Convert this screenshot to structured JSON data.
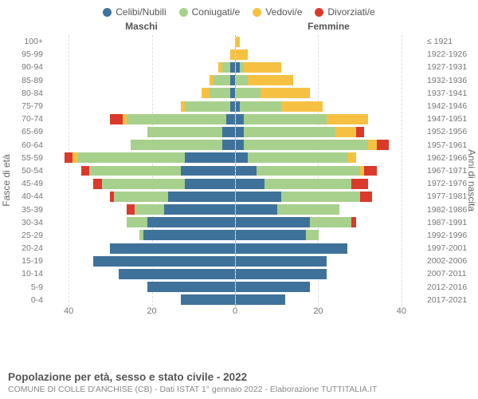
{
  "legend": [
    {
      "label": "Celibi/Nubili",
      "color": "#3f729b"
    },
    {
      "label": "Coniugati/e",
      "color": "#a8d08d"
    },
    {
      "label": "Vedovi/e",
      "color": "#f6c143"
    },
    {
      "label": "Divorziati/e",
      "color": "#d93a2b"
    }
  ],
  "chart": {
    "type": "population-pyramid",
    "male_label": "Maschi",
    "female_label": "Femmine",
    "y_title_left": "Fasce di età",
    "y_title_right": "Anni di nascita",
    "xmax": 45,
    "xticks": [
      40,
      20,
      0,
      20,
      40
    ],
    "background_color": "#ffffff",
    "grid_color": "#dddddd",
    "centerline_color": "#bbbbbb",
    "label_fontsize": 11,
    "axis_fontsize": 12,
    "colors": {
      "single": "#3f729b",
      "married": "#a8d08d",
      "widowed": "#f6c143",
      "divorced": "#d93a2b"
    },
    "rows": [
      {
        "age": "100+",
        "birth": "≤ 1921",
        "m": [
          0,
          0,
          0,
          0
        ],
        "f": [
          0,
          0,
          1,
          0
        ]
      },
      {
        "age": "95-99",
        "birth": "1922-1926",
        "m": [
          0,
          0,
          1,
          0
        ],
        "f": [
          0,
          0,
          3,
          0
        ]
      },
      {
        "age": "90-94",
        "birth": "1927-1931",
        "m": [
          1,
          2,
          1,
          0
        ],
        "f": [
          1,
          1,
          9,
          0
        ]
      },
      {
        "age": "85-89",
        "birth": "1932-1936",
        "m": [
          1,
          4,
          1,
          0
        ],
        "f": [
          0,
          3,
          11,
          0
        ]
      },
      {
        "age": "80-84",
        "birth": "1937-1941",
        "m": [
          1,
          5,
          2,
          0
        ],
        "f": [
          0,
          6,
          12,
          0
        ]
      },
      {
        "age": "75-79",
        "birth": "1942-1946",
        "m": [
          1,
          11,
          1,
          0
        ],
        "f": [
          1,
          10,
          10,
          0
        ]
      },
      {
        "age": "70-74",
        "birth": "1947-1951",
        "m": [
          2,
          24,
          1,
          3
        ],
        "f": [
          2,
          20,
          10,
          0
        ]
      },
      {
        "age": "65-69",
        "birth": "1952-1956",
        "m": [
          3,
          18,
          0,
          0
        ],
        "f": [
          2,
          22,
          5,
          2
        ]
      },
      {
        "age": "60-64",
        "birth": "1957-1961",
        "m": [
          3,
          22,
          0,
          0
        ],
        "f": [
          2,
          30,
          2,
          3
        ]
      },
      {
        "age": "55-59",
        "birth": "1962-1966",
        "m": [
          12,
          26,
          1,
          2
        ],
        "f": [
          3,
          24,
          2,
          0
        ]
      },
      {
        "age": "50-54",
        "birth": "1967-1971",
        "m": [
          13,
          22,
          0,
          2
        ],
        "f": [
          5,
          25,
          1,
          3
        ]
      },
      {
        "age": "45-49",
        "birth": "1972-1976",
        "m": [
          12,
          20,
          0,
          2
        ],
        "f": [
          7,
          21,
          0,
          4
        ]
      },
      {
        "age": "40-44",
        "birth": "1977-1981",
        "m": [
          16,
          13,
          0,
          1
        ],
        "f": [
          11,
          19,
          0,
          3
        ]
      },
      {
        "age": "35-39",
        "birth": "1982-1986",
        "m": [
          17,
          7,
          0,
          2
        ],
        "f": [
          10,
          15,
          0,
          0
        ]
      },
      {
        "age": "30-34",
        "birth": "1987-1991",
        "m": [
          21,
          5,
          0,
          0
        ],
        "f": [
          18,
          10,
          0,
          1
        ]
      },
      {
        "age": "25-29",
        "birth": "1992-1996",
        "m": [
          22,
          1,
          0,
          0
        ],
        "f": [
          17,
          3,
          0,
          0
        ]
      },
      {
        "age": "20-24",
        "birth": "1997-2001",
        "m": [
          30,
          0,
          0,
          0
        ],
        "f": [
          27,
          0,
          0,
          0
        ]
      },
      {
        "age": "15-19",
        "birth": "2002-2006",
        "m": [
          34,
          0,
          0,
          0
        ],
        "f": [
          22,
          0,
          0,
          0
        ]
      },
      {
        "age": "10-14",
        "birth": "2007-2011",
        "m": [
          28,
          0,
          0,
          0
        ],
        "f": [
          22,
          0,
          0,
          0
        ]
      },
      {
        "age": "5-9",
        "birth": "2012-2016",
        "m": [
          21,
          0,
          0,
          0
        ],
        "f": [
          18,
          0,
          0,
          0
        ]
      },
      {
        "age": "0-4",
        "birth": "2017-2021",
        "m": [
          13,
          0,
          0,
          0
        ],
        "f": [
          12,
          0,
          0,
          0
        ]
      }
    ]
  },
  "footer": {
    "title": "Popolazione per età, sesso e stato civile - 2022",
    "subtitle": "COMUNE DI COLLE D'ANCHISE (CB) - Dati ISTAT 1° gennaio 2022 - Elaborazione TUTTITALIA.IT"
  }
}
